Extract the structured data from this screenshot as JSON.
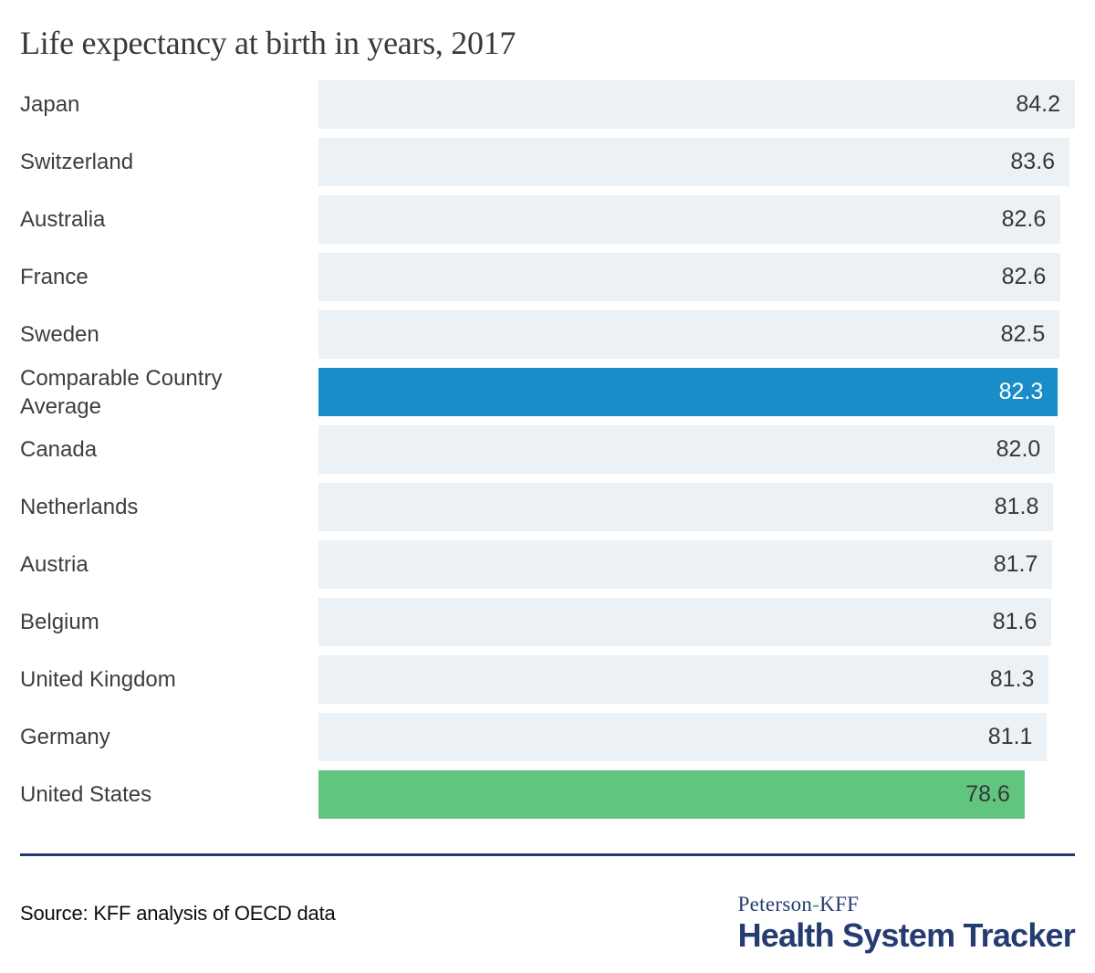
{
  "title": "Life expectancy at birth in years, 2017",
  "source": "Source: KFF analysis of OECD data",
  "logo": {
    "brand_left": "Peterson",
    "brand_hyphen": "-",
    "brand_right": "KFF",
    "name": "Health System Tracker"
  },
  "colors": {
    "default_bar": "#ebf1f4",
    "average_bar": "#1a8cc8",
    "us_bar": "#62c57f",
    "navy": "#253c72",
    "divider": "#1f3a70",
    "title_text": "#3a3a3a",
    "label_text": "#3b3e40",
    "value_text": "#35383b",
    "value_text_on_blue": "#ffffff",
    "source_text": "#0d0d0d",
    "hyphen_green": "#43a047"
  },
  "chart_data": {
    "type": "bar",
    "orientation": "horizontal",
    "title": "Life expectancy at birth in years, 2017",
    "xlabel": "",
    "ylabel": "",
    "xlim": [
      0,
      84.2
    ],
    "grid": false,
    "legend": false,
    "value_label_decimals": 1,
    "categories": [
      "Japan",
      "Switzerland",
      "Australia",
      "France",
      "Sweden",
      "Comparable Country Average",
      "Canada",
      "Netherlands",
      "Austria",
      "Belgium",
      "United Kingdom",
      "Germany",
      "United States"
    ],
    "values": [
      84.2,
      83.6,
      82.6,
      82.6,
      82.5,
      82.3,
      82.0,
      81.8,
      81.7,
      81.6,
      81.3,
      81.1,
      78.6
    ],
    "bar_styles": [
      "default",
      "default",
      "default",
      "default",
      "default",
      "average",
      "default",
      "default",
      "default",
      "default",
      "default",
      "default",
      "us"
    ]
  }
}
